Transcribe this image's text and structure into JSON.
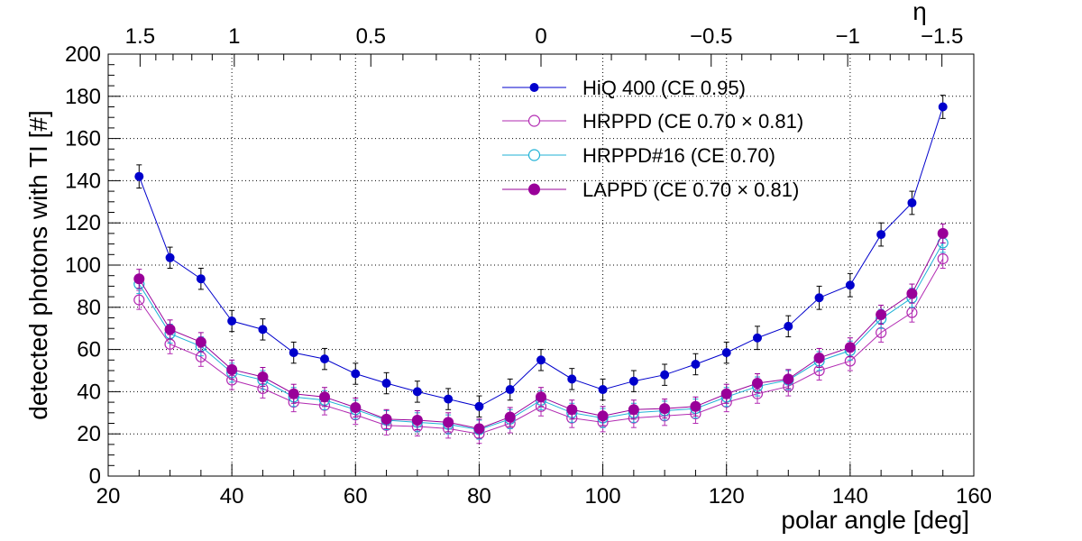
{
  "chart_data": {
    "type": "scatter",
    "xlabel": "polar angle [deg]",
    "ylabel": "detected photons with TI [#]",
    "top_axis_label": "η",
    "xlim": [
      20,
      160
    ],
    "ylim": [
      0,
      200
    ],
    "grid": true,
    "legend_position": "top-center",
    "x_ticks": [
      20,
      40,
      60,
      80,
      100,
      120,
      140,
      160
    ],
    "y_ticks": [
      0,
      20,
      40,
      60,
      80,
      100,
      120,
      140,
      160,
      180,
      200
    ],
    "top_ticks": [
      {
        "label": "1.5",
        "eta": 1.5
      },
      {
        "label": "1",
        "eta": 1
      },
      {
        "label": "0.5",
        "eta": 0.5
      },
      {
        "label": "0",
        "eta": 0
      },
      {
        "label": "−0.5",
        "eta": -0.5
      },
      {
        "label": "−1",
        "eta": -1
      },
      {
        "label": "−1.5",
        "eta": -1.5
      }
    ],
    "x": [
      25,
      30,
      35,
      40,
      45,
      50,
      55,
      60,
      65,
      70,
      75,
      80,
      85,
      90,
      95,
      100,
      105,
      110,
      115,
      120,
      125,
      130,
      135,
      140,
      145,
      150,
      155
    ],
    "series": [
      {
        "name": "HiQ 400 (CE 0.95)",
        "color": "#0000cc",
        "marker": "filled",
        "values": [
          142,
          103.5,
          93.5,
          73.5,
          69.5,
          58.5,
          55.5,
          48.5,
          44,
          40,
          36.5,
          33,
          41,
          55,
          46,
          41,
          45,
          48,
          53,
          58.5,
          65.5,
          71,
          84.5,
          90.5,
          114.5,
          129.5,
          175
        ],
        "errors": [
          5.5,
          5,
          5,
          5,
          5,
          5,
          5,
          5,
          5,
          5,
          5,
          5,
          5,
          5,
          5,
          5,
          5,
          5,
          5,
          5,
          5.5,
          5,
          5.5,
          5.5,
          5.5,
          5.5,
          5.5
        ]
      },
      {
        "name": "HRPPD (CE 0.70  × 0.81)",
        "color": "#b22ab2",
        "marker": "open",
        "values": [
          83.5,
          62.5,
          56.5,
          45.5,
          41.5,
          35,
          33.5,
          29,
          24,
          23.5,
          22.5,
          20,
          25,
          33,
          27.5,
          25.5,
          27.5,
          28.5,
          29.5,
          35,
          39,
          42.5,
          50,
          54.5,
          68,
          77.5,
          103
        ],
        "errors": [
          4.5,
          4.5,
          4.5,
          4.5,
          4.5,
          4.5,
          4.5,
          4.5,
          4.5,
          4.5,
          4.5,
          4.5,
          4.5,
          4.5,
          4.5,
          4.5,
          4.5,
          4.5,
          4.5,
          4.5,
          4.5,
          4.5,
          4.5,
          4.5,
          4.5,
          4.5,
          4.5
        ]
      },
      {
        "name": "HRPPD#16 (CE 0.70)",
        "color": "#1fb2d6",
        "marker": "open",
        "values": [
          91,
          67.5,
          61.5,
          49,
          45.5,
          37.5,
          36,
          31.5,
          26.5,
          25.5,
          24.5,
          22,
          27,
          36,
          30,
          27.5,
          30,
          31,
          32,
          37.5,
          42.5,
          45.5,
          54.5,
          59.5,
          74.5,
          84.5,
          110.5
        ],
        "errors": [
          4.5,
          4.5,
          4.5,
          4.5,
          4.5,
          4.5,
          4.5,
          4.5,
          4.5,
          4.5,
          4.5,
          4.5,
          4.5,
          4.5,
          4.5,
          4.5,
          4.5,
          4.5,
          4.5,
          4.5,
          4.5,
          4.5,
          4.5,
          4.5,
          4.5,
          4.5,
          4.5
        ]
      },
      {
        "name": "LAPPD (CE 0.70  × 0.81)",
        "color": "#990099",
        "marker": "filled",
        "values": [
          93.5,
          69.5,
          63.5,
          50.5,
          47,
          39,
          37.5,
          32.5,
          27,
          26.5,
          25.5,
          22.5,
          28,
          37.5,
          31.5,
          28.5,
          31.5,
          32,
          33,
          39,
          44,
          46,
          56,
          61,
          76.5,
          86.5,
          115
        ],
        "errors": [
          4.5,
          4.5,
          4.5,
          4.5,
          4.5,
          4.5,
          4.5,
          4.5,
          4.5,
          4.5,
          4.5,
          4.5,
          4.5,
          4.5,
          4.5,
          4.5,
          4.5,
          4.5,
          4.5,
          4.5,
          4.5,
          4.5,
          4.5,
          4.5,
          4.5,
          4.5,
          4.5
        ]
      }
    ]
  }
}
